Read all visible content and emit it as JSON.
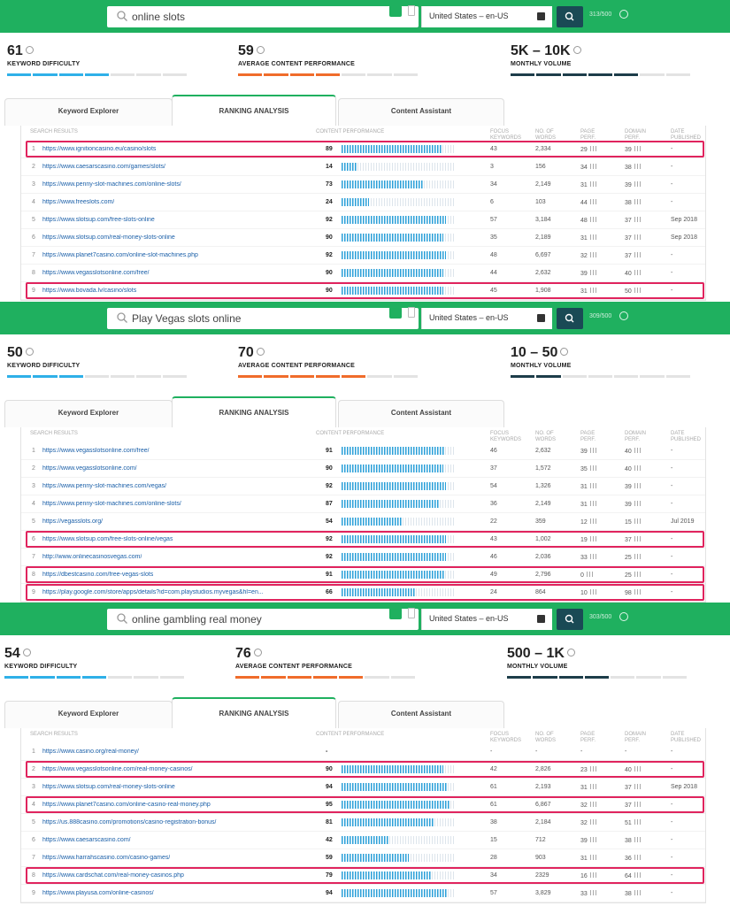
{
  "panels": [
    {
      "query": "online slots",
      "locale": "United States – en-US",
      "credits": "313/500",
      "metrics": {
        "kd": {
          "value": "61",
          "label": "KEYWORD DIFFICULTY",
          "level": 0.64
        },
        "acp": {
          "value": "59",
          "label": "AVERAGE CONTENT PERFORMANCE",
          "level": 0.59
        },
        "mv": {
          "value": "5K – 10K",
          "label": "MONTHLY VOLUME",
          "level": 0.71
        }
      },
      "tabs": [
        "Keyword Explorer",
        "RANKING ANALYSIS",
        "Content Assistant"
      ],
      "headers": {
        "results": "SEARCH RESULTS",
        "cp": "CONTENT PERFORMANCE",
        "focus": "FOCUS\nKEYWORDS",
        "words": "NO. OF\nWORDS",
        "page": "PAGE\nPERF.",
        "domain": "DOMAIN\nPERF.",
        "date": "DATE\nPUBLISHED"
      },
      "rows": [
        {
          "n": "1",
          "url": "https://www.ignitioncasino.eu/casino/slots",
          "cp": "89",
          "fk": "43",
          "w": "2,334",
          "pp": "29",
          "dp": "39",
          "d": "-"
        },
        {
          "n": "2",
          "url": "https://www.caesarscasino.com/games/slots/",
          "cp": "14",
          "fk": "3",
          "w": "156",
          "pp": "34",
          "dp": "38",
          "d": "-"
        },
        {
          "n": "3",
          "url": "https://www.penny-slot-machines.com/online-slots/",
          "cp": "73",
          "fk": "34",
          "w": "2,149",
          "pp": "31",
          "dp": "39",
          "d": "-"
        },
        {
          "n": "4",
          "url": "https://www.freeslots.com/",
          "cp": "24",
          "fk": "6",
          "w": "103",
          "pp": "44",
          "dp": "38",
          "d": "-"
        },
        {
          "n": "5",
          "url": "https://www.slotsup.com/free-slots-online",
          "cp": "92",
          "fk": "57",
          "w": "3,184",
          "pp": "48",
          "dp": "37",
          "d": "Sep 2018"
        },
        {
          "n": "6",
          "url": "https://www.slotsup.com/real-money-slots-online",
          "cp": "90",
          "fk": "35",
          "w": "2,189",
          "pp": "31",
          "dp": "37",
          "d": "Sep 2018"
        },
        {
          "n": "7",
          "url": "https://www.planet7casino.com/online-slot-machines.php",
          "cp": "92",
          "fk": "48",
          "w": "6,697",
          "pp": "32",
          "dp": "37",
          "d": "-"
        },
        {
          "n": "8",
          "url": "https://www.vegasslotsonline.com/free/",
          "cp": "90",
          "fk": "44",
          "w": "2,632",
          "pp": "39",
          "dp": "40",
          "d": "-"
        },
        {
          "n": "9",
          "url": "https://www.bovada.lv/casino/slots",
          "cp": "90",
          "fk": "45",
          "w": "1,908",
          "pp": "31",
          "dp": "50",
          "d": "-"
        }
      ]
    },
    {
      "query": "Play Vegas slots online",
      "locale": "United States – en-US",
      "credits": "309/500",
      "metrics": {
        "kd": {
          "value": "50",
          "label": "KEYWORD DIFFICULTY",
          "level": 0.52
        },
        "acp": {
          "value": "70",
          "label": "AVERAGE CONTENT PERFORMANCE",
          "level": 0.7
        },
        "mv": {
          "value": "10 – 50",
          "label": "MONTHLY VOLUME",
          "level": 0.29
        }
      },
      "tabs": [
        "Keyword Explorer",
        "RANKING ANALYSIS",
        "Content Assistant"
      ],
      "headers": {
        "results": "SEARCH RESULTS",
        "cp": "CONTENT PERFORMANCE",
        "focus": "FOCUS\nKEYWORDS",
        "words": "NO. OF\nWORDS",
        "page": "PAGE\nPERF.",
        "domain": "DOMAIN\nPERF.",
        "date": "DATE\nPUBLISHED"
      },
      "rows": [
        {
          "n": "1",
          "url": "https://www.vegasslotsonline.com/free/",
          "cp": "91",
          "fk": "46",
          "w": "2,632",
          "pp": "39",
          "dp": "40",
          "d": "-"
        },
        {
          "n": "2",
          "url": "https://www.vegasslotsonline.com/",
          "cp": "90",
          "fk": "37",
          "w": "1,572",
          "pp": "35",
          "dp": "40",
          "d": "-"
        },
        {
          "n": "3",
          "url": "https://www.penny-slot-machines.com/vegas/",
          "cp": "92",
          "fk": "54",
          "w": "1,326",
          "pp": "31",
          "dp": "39",
          "d": "-"
        },
        {
          "n": "4",
          "url": "https://www.penny-slot-machines.com/online-slots/",
          "cp": "87",
          "fk": "36",
          "w": "2,149",
          "pp": "31",
          "dp": "39",
          "d": "-"
        },
        {
          "n": "5",
          "url": "https://vegasslots.org/",
          "cp": "54",
          "fk": "22",
          "w": "359",
          "pp": "12",
          "dp": "15",
          "d": "Jul 2019"
        },
        {
          "n": "6",
          "url": "https://www.slotsup.com/free-slots-online/vegas",
          "cp": "92",
          "fk": "43",
          "w": "1,002",
          "pp": "19",
          "dp": "37",
          "d": "-"
        },
        {
          "n": "7",
          "url": "http://www.onlinecasinosvegas.com/",
          "cp": "92",
          "fk": "46",
          "w": "2,036",
          "pp": "33",
          "dp": "25",
          "d": "-"
        },
        {
          "n": "8",
          "url": "https://dbestcasino.com/free-vegas-slots",
          "cp": "91",
          "fk": "49",
          "w": "2,796",
          "pp": "0",
          "dp": "25",
          "d": "-"
        },
        {
          "n": "9",
          "url": "https://play.google.com/store/apps/details?id=com.playstudios.myvegas&hl=en...",
          "cp": "66",
          "fk": "24",
          "w": "864",
          "pp": "10",
          "dp": "98",
          "d": "-"
        }
      ]
    },
    {
      "query": "online gambling real money",
      "locale": "United States – en-US",
      "credits": "303/500",
      "metrics": {
        "kd": {
          "value": "54",
          "label": "KEYWORD DIFFICULTY",
          "level": 0.56
        },
        "acp": {
          "value": "76",
          "label": "AVERAGE CONTENT PERFORMANCE",
          "level": 0.76
        },
        "mv": {
          "value": "500 – 1K",
          "label": "MONTHLY VOLUME",
          "level": 0.57
        }
      },
      "tabs": [
        "Keyword Explorer",
        "RANKING ANALYSIS",
        "Content Assistant"
      ],
      "headers": {
        "results": "SEARCH RESULTS",
        "cp": "CONTENT PERFORMANCE",
        "focus": "FOCUS\nKEYWORDS",
        "words": "NO. OF\nWORDS",
        "page": "PAGE\nPERF.",
        "domain": "DOMAIN\nPERF.",
        "date": "DATE\nPUBLISHED"
      },
      "rows": [
        {
          "n": "1",
          "url": "https://www.casino.org/real-money/",
          "cp": "-",
          "fk": "-",
          "w": "-",
          "pp": "-",
          "dp": "-",
          "d": "-"
        },
        {
          "n": "2",
          "url": "https://www.vegasslotsonline.com/real-money-casinos/",
          "cp": "90",
          "fk": "42",
          "w": "2,826",
          "pp": "23",
          "dp": "40",
          "d": "-"
        },
        {
          "n": "3",
          "url": "https://www.slotsup.com/real-money-slots-online",
          "cp": "94",
          "fk": "61",
          "w": "2,193",
          "pp": "31",
          "dp": "37",
          "d": "Sep 2018"
        },
        {
          "n": "4",
          "url": "https://www.planet7casino.com/online-casino-real-money.php",
          "cp": "95",
          "fk": "61",
          "w": "6,867",
          "pp": "32",
          "dp": "37",
          "d": "-"
        },
        {
          "n": "5",
          "url": "https://us.888casino.com/promotions/casino-registration-bonus/",
          "cp": "81",
          "fk": "38",
          "w": "2,184",
          "pp": "32",
          "dp": "51",
          "d": "-"
        },
        {
          "n": "6",
          "url": "https://www.caesarscasino.com/",
          "cp": "42",
          "fk": "15",
          "w": "712",
          "pp": "39",
          "dp": "38",
          "d": "-"
        },
        {
          "n": "7",
          "url": "https://www.harrahscasino.com/casino-games/",
          "cp": "59",
          "fk": "28",
          "w": "903",
          "pp": "31",
          "dp": "36",
          "d": "-"
        },
        {
          "n": "8",
          "url": "https://www.cardschat.com/real-money-casinos.php",
          "cp": "79",
          "fk": "34",
          "w": "2329",
          "pp": "16",
          "dp": "64",
          "d": "-"
        },
        {
          "n": "9",
          "url": "https://www.playusa.com/online-casinos/",
          "cp": "94",
          "fk": "57",
          "w": "3,829",
          "pp": "33",
          "dp": "38",
          "d": "-"
        }
      ]
    }
  ],
  "colors": {
    "green": "#1fb05f",
    "kd": "#2fb0e8",
    "acp": "#f06c2b",
    "mv": "#1d3d4a",
    "highlight": "#e0245e",
    "link": "#1a5fa8"
  }
}
